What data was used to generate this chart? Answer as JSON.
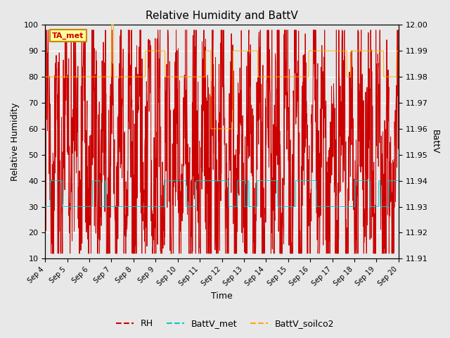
{
  "title": "Relative Humidity and BattV",
  "xlabel": "Time",
  "ylabel_left": "Relative Humidity",
  "ylabel_right": "BattV",
  "annotation_text": "TA_met",
  "annotation_color": "#cc0000",
  "annotation_bg": "#ffff99",
  "annotation_border": "#cc8800",
  "ylim_left": [
    10,
    100
  ],
  "ylim_right": [
    11.91,
    12.0
  ],
  "yticks_left": [
    10,
    20,
    30,
    40,
    50,
    60,
    70,
    80,
    90,
    100
  ],
  "yticks_right": [
    11.91,
    11.92,
    11.93,
    11.94,
    11.95,
    11.96,
    11.97,
    11.98,
    11.99,
    12.0
  ],
  "legend_items": [
    "RH",
    "BattV_met",
    "BattV_soilco2"
  ],
  "legend_colors": [
    "#cc0000",
    "#00cccc",
    "#ffaa00"
  ],
  "bg_color": "#e8e8e8",
  "plot_bg_color": "#e8e8e8",
  "grid_color": "#ffffff",
  "n_days": 16,
  "seed": 42,
  "xtick_labels": [
    "Sep 4",
    "Sep 5",
    "Sep 6",
    "Sep 7",
    "Sep 8",
    "Sep 9",
    "Sep 9",
    "Sep 10",
    "Sep 11",
    "Sep 12",
    "Sep 13",
    "Sep 14",
    "Sep 15",
    "Sep 16",
    "Sep 17",
    "Sep 18",
    "Sep 19"
  ],
  "title_fontsize": 11,
  "axis_label_fontsize": 9,
  "tick_fontsize": 8
}
